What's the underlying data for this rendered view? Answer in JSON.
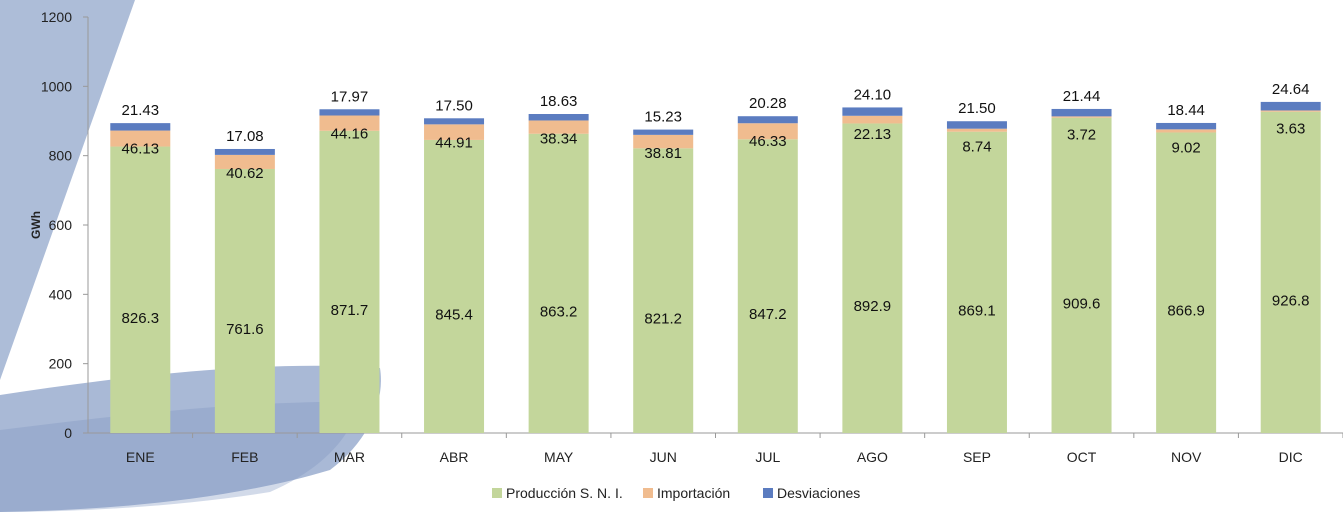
{
  "title": "",
  "colors": {
    "produccion": "#c3d69b",
    "importacion": "#f0bc8f",
    "desviaciones": "#5b7cc0",
    "decoration": "#a9b9d6",
    "decoration_dark": "#7d95bf",
    "axis": "#999999"
  },
  "chart_data": {
    "type": "bar",
    "stacked": true,
    "title": "",
    "xlabel": "",
    "ylabel": "GWh",
    "ylim": [
      0,
      1200
    ],
    "yticks": [
      0,
      200,
      400,
      600,
      800,
      1000,
      1200
    ],
    "grid": false,
    "legend_position": "bottom-center",
    "categories": [
      "ENE",
      "FEB",
      "MAR",
      "ABR",
      "MAY",
      "JUN",
      "JUL",
      "AGO",
      "SEP",
      "OCT",
      "NOV",
      "DIC"
    ],
    "series": [
      {
        "name": "Producción S. N. I.",
        "color": "#c3d69b",
        "values": [
          826.3,
          761.6,
          871.7,
          845.4,
          863.2,
          821.2,
          847.2,
          892.9,
          869.1,
          909.6,
          866.9,
          926.8
        ],
        "labels": [
          "826.3",
          "761.6",
          "871.7",
          "845.4",
          "863.2",
          "821.2",
          "847.2",
          "892.9",
          "869.1",
          "909.6",
          "866.9",
          "926.8"
        ]
      },
      {
        "name": "Importación",
        "color": "#f0bc8f",
        "values": [
          46.13,
          40.62,
          44.16,
          44.91,
          38.34,
          38.81,
          46.33,
          22.13,
          8.74,
          3.72,
          9.02,
          3.63
        ],
        "labels": [
          "46.13",
          "40.62",
          "44.16",
          "44.91",
          "38.34",
          "38.81",
          "46.33",
          "22.13",
          "8.74",
          "3.72",
          "9.02",
          "3.63"
        ]
      },
      {
        "name": "Desviaciones",
        "color": "#5b7cc0",
        "values": [
          21.43,
          17.08,
          17.97,
          17.5,
          18.63,
          15.23,
          20.28,
          24.1,
          21.5,
          21.44,
          18.44,
          24.64
        ],
        "labels": [
          "21.43",
          "17.08",
          "17.97",
          "17.50",
          "18.63",
          "15.23",
          "20.28",
          "24.10",
          "21.50",
          "21.44",
          "18.44",
          "24.64"
        ]
      }
    ]
  }
}
